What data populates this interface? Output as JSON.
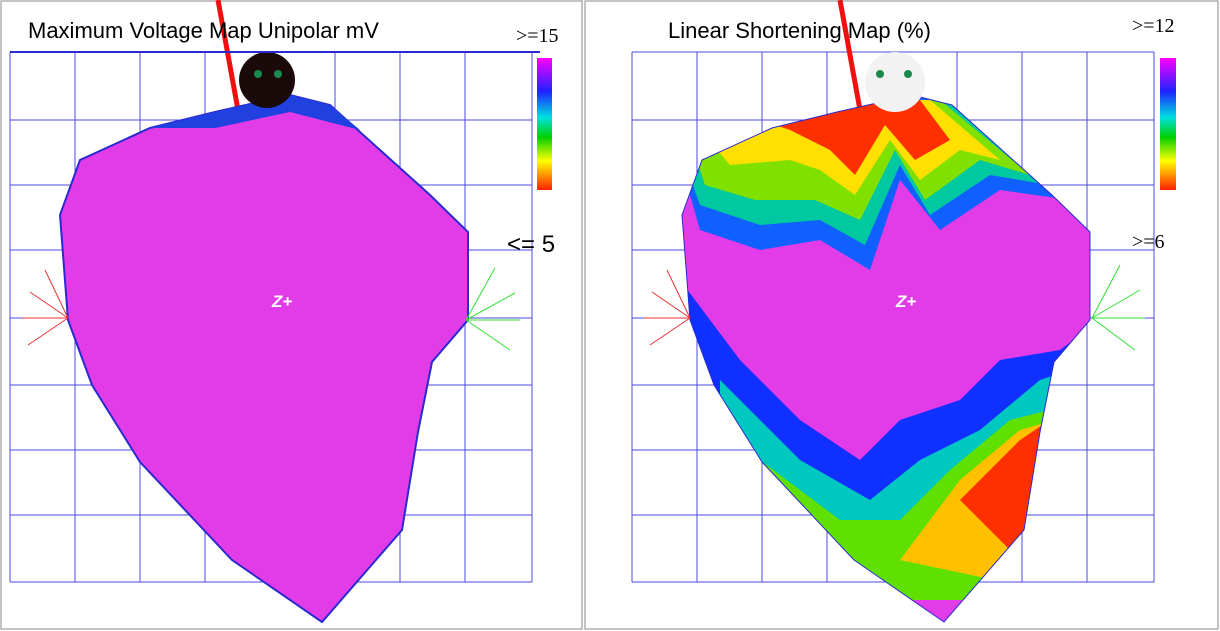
{
  "panels": [
    {
      "title": "Maximum Voltage Map Unipolar mV",
      "scale_max": ">=15",
      "scale_min": "<= 5",
      "axis_label": "Z+"
    },
    {
      "title": "Linear Shortening Map (%)",
      "scale_max": ">=12",
      "scale_min": ">=6",
      "axis_label": "Z+"
    }
  ]
}
